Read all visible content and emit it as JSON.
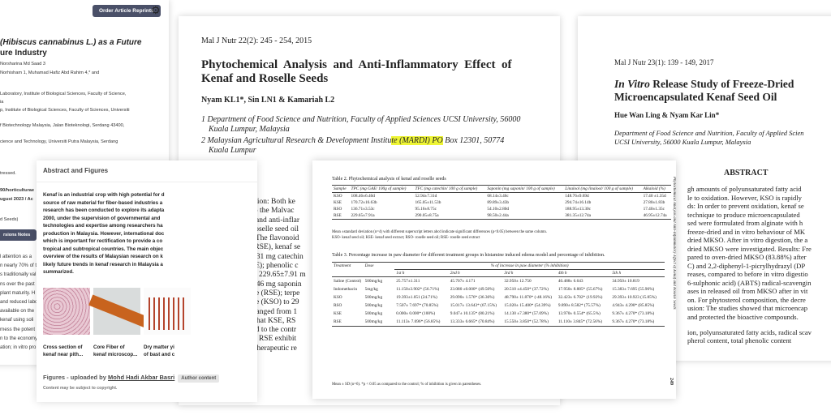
{
  "docA": {
    "reprint_button": "Order Article Reprints",
    "title_lines": [
      "(Hibiscus cannabinus L.) as a Future",
      "ure Industry"
    ],
    "authors_lines": [
      "Norsharina Md Saad 3",
      "Norhisham 1, Muhamad Hafiz Abd Rahim 4,* and"
    ],
    "affiliations": [
      "Laboratory, Institute of Biological Sciences, Faculty of Science,",
      "ia",
      "p, Institute of Biological Sciences, Faculty of Sciences, Universiti",
      "f Biotechnology Malaysia, Jalan Bioteknologi, Serdang 43400,",
      "cience and Technology, Universiti Putra Malaysia, Serdang"
    ],
    "meta_lines": [
      "tressed.",
      "90/horticulturae",
      "ugust 2023 / Ac",
      "d Seeds)"
    ],
    "versions_button": "rsions Notes",
    "body_lines": [
      "l attention as a",
      "n nearly 70% of t",
      "s traditionally val",
      "ns over the past",
      "plant maturity. H",
      "and reduced labo",
      "available on the",
      "kenaf using soli",
      "rness the potent",
      "n to the economy",
      "ation; in vitro pro"
    ]
  },
  "figures": {
    "heading": "Abstract and Figures",
    "abstract_lines": [
      "Kenaf is an industrial crop with high potential for d",
      "source of raw material for fiber-based industries a",
      "research has been conducted to explore its adapta",
      "2000, under the supervision of governmental and",
      "technologies and expertise among researchers ha",
      "production in Malaysia. However, international doc",
      "which is important for rectification to provide a co",
      "tropical and subtropical countries. The main objec",
      "overview of the results of Malaysian research on k",
      "likely future trends in kenaf research in Malaysia a",
      "summarized."
    ],
    "captions": [
      [
        "Cross section of",
        "kenaf near pith..."
      ],
      [
        "Core Fiber of",
        "kenaf microscop..."
      ],
      [
        "Dry matter yi",
        "of bast and c"
      ]
    ],
    "uploaded_prefix": "Figures - uploaded by",
    "uploader": "Mohd Hadi Akbar Basri",
    "badge": "Author content",
    "copyright": "Content may be subject to copyright."
  },
  "docB": {
    "journal": "Mal J Nutr  22(2): 245 - 254, 2015",
    "title_lines": [
      "Phytochemical  Analysis  and  Anti-Inflammatory  Effect  of",
      "Kenaf and Roselle Seeds"
    ],
    "authors": "Nyam KL1*, Sin LN1 & Kamariah L2",
    "aff1": [
      "1  Department of Food Science and Nutrition, Faculty of Applied Sciences UCSI University, 56000",
      "Kuala Lumpur, Malaysia"
    ],
    "aff2_pre": "2  Malaysian Agricultural Research & Development Institu",
    "aff2_hl": "te (MARDI) PO",
    "aff2_post": " Box 12301, 50774",
    "aff2_line2": "Kuala Lumpur",
    "highlight_color": "#eef535",
    "body_lines": [
      "Introduction: Both ke",
      "belong to the Malvac",
      "analysis and anti-inflar",
      "(KSE), roselle seed oil",
      "Results: The flavonoid",
      "extract (RSE), kenaf se",
      "52.94±7.31 mg catechin",
      "g of (RSE); phenolic c",
      "(RSO) to 229.65±7.91 m",
      "68.14±3.46 mg saponin",
      "of sample (RSE); terpe",
      "of sample (KSO) to 29",
      "content ranged from 1",
      "showed that KSE, RS",
      "compared to the contr",
      "RSO and RSE exhibit",
      "use as a therapeutic re"
    ]
  },
  "table_page": {
    "table2_caption": "Table 2. Phytochemical analysis of kenaf and roselle seeds",
    "table2_headers": [
      "Sample",
      "TPC (mg GAE/ 100g of sample)",
      "TFC (mg catechin/ 100 g of sample)",
      "Saponin (mg saponin/ 100 g of sample)",
      "Linalool (mg linalool/ 100 g of sample)",
      "Alkaloid (%)"
    ],
    "table2_rows": [
      [
        "KSO",
        "108.46±6.40d",
        "52.94±7.31d",
        "68.14±3.46c",
        "148.76±9.69d",
        "17.40 ±1.35d"
      ],
      [
        "KSE",
        "170.72±16.63b",
        "165.05±11.53b",
        "89.89±3.43b",
        "294.74±16.14b",
        "27.80±1.83b"
      ],
      [
        "RSO",
        "136.71±3.53c",
        "95.16±8.75c",
        "54.10±2.80d",
        "188.95±13.30c",
        "17.40±1.35c"
      ],
      [
        "RSE",
        "229.65±7.91a",
        "290.05±8.75a",
        "98.50±2.44a",
        "381.35±12.74a",
        "46.95±12.74a"
      ]
    ],
    "table2_note1": "Mean ±standard deviation (n=4) with different superscript letters abcd indicate significant differences (p<0.05) between the same column.",
    "table2_note2": "KSO- kenaf seed oil; KSE- kenaf seed extract; RSO- roselle  seed oil; RSE- roselle seed extract",
    "table3_caption": "Table 3. Percentage increase in paw diameter for different treatment groups in histamine induced edema model and percentage of inhibition.",
    "table3_group_header": "% of increase in paw diameter (% inhibition)",
    "table3_headers": [
      "Treatment",
      "Dose",
      "1st h",
      "2nd h",
      "3rd h",
      "4th h",
      "5th h"
    ],
    "table3_rows": [
      [
        "Saline (Control)",
        "500mg/kg",
        "25.757±1.311",
        "45.707± 4.171",
        "32.950± 12.750",
        "40.488± 6.643",
        "34.950± 10.819"
      ],
      [
        "Indomethacin",
        "5mg/kg",
        "11.150±3.902* (56.71%)",
        "23.080 ±0.000* (49.50%)",
        "20.510 ±4.450* (37.72%)",
        "17.950± 8.885* (55.67%)",
        "15.383± 7.695 (55.96%)"
      ],
      [
        "KSO",
        "500mg/kg",
        "19.393±1.051 (24.71%)",
        "29.090± 1.576* (36.36%)",
        "48.790± 11.870* (-48.16%)",
        "32.423± 6.702* (19.92%)",
        "29.393± 10.923 (15.85%)"
      ],
      [
        "RSO",
        "500mg/kg",
        "7.507± 7.697* (70.85%)",
        "15.017± 13.643* (67.15%)",
        "15.020± 15.400* (54.39%)",
        "9.890± 8.582* (75.57%)",
        "4.943± 4.290* (85.85%)"
      ],
      [
        "KSE",
        "500mg/kg",
        "0.000± 0.000* (100%)",
        "9.047± 10.135* (80.21%)",
        "14.130 ±7.380* (57.09%)",
        "13.970± 0.554* (65.5%)",
        "9.367± 4.270* (73.18%)"
      ],
      [
        "RSE",
        "500mg/kg",
        "11.113± 7.696* (56.85%)",
        "13.333± 6.665* (70.84%)",
        "15.550± 3.850* (52.78%)",
        "11.110± 3.845* (72.56%)",
        "9.367± 4.270* (73.18%)"
      ]
    ],
    "table3_note": "Mean ± SD (n=6). *p < 0.05 as compared to the control; % of inhibition is given in parentheses.",
    "running_head": "Phytochemical Analysis and Anti-Inflammatory Effect of Kenaf and Roselle Seeds",
    "page_number": "249"
  },
  "docC": {
    "journal": "Mal J Nutr  23(1): 139 - 149, 2017",
    "title_italic": "In Vitro",
    "title_line1_rest": " Release Study of Freeze-Dried",
    "title_line2": "Microencapsulated Kenaf Seed Oil",
    "authors": "Hue Wan Ling & Nyam Kar Lin*",
    "aff_lines": [
      "Department of Food Science and Nutrition, Faculty of Applied Scien",
      "UCSI University, 56000 Kuala Lumpur, Malaysia"
    ],
    "abstract_heading": "ABSTRACT",
    "abstract_lines": [
      "gh amounts of polyunsaturated fatty acid",
      "le to oxidation. However, KSO is rapidly",
      "ds: In order to prevent oxidation, kenaf se",
      "technique to produce microencapsulated",
      "sed were formulated from alginate with h",
      "freeze-dried and in vitro behaviour of MK",
      "dried MKSO. After in vitro digestion, the a",
      "dried MKSO were investigated. Results: Fre",
      "pared to oven-dried MKSO (83.88%) after",
      "C) and 2,2-diphenyl-1-picrylhydrazyl (DP",
      "reases, compared to before in vitro digestio",
      "6-sulphonic acid) (ABTS) radical-scavengin",
      "ases in released oil from MKSO after in vit",
      "on. For phytosterol composition, the decre",
      "usion: The studies showed that microencap",
      "and protected the bioactive compounds.",
      "",
      "ion, polyunsaturated fatty acids, radical scav",
      "pherol content, total phenolic content"
    ]
  }
}
